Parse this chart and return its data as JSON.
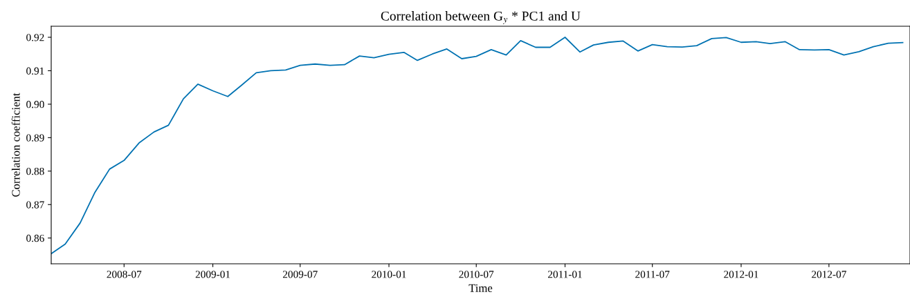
{
  "chart_data": {
    "type": "line",
    "title": "Correlation between G$_{y}$ * PC1 and U",
    "xlabel": "Time",
    "ylabel": "Correlation coefficient",
    "x": [
      "2008-02",
      "2008-03",
      "2008-04",
      "2008-05",
      "2008-06",
      "2008-07",
      "2008-08",
      "2008-09",
      "2008-10",
      "2008-11",
      "2008-12",
      "2009-01",
      "2009-02",
      "2009-03",
      "2009-04",
      "2009-05",
      "2009-06",
      "2009-07",
      "2009-08",
      "2009-09",
      "2009-10",
      "2009-11",
      "2009-12",
      "2010-01",
      "2010-02",
      "2010-03",
      "2010-04",
      "2010-05",
      "2010-06",
      "2010-07",
      "2010-08",
      "2010-09",
      "2010-10",
      "2010-11",
      "2010-12",
      "2011-01",
      "2011-02",
      "2011-03",
      "2011-04",
      "2011-05",
      "2011-06",
      "2011-07",
      "2011-08",
      "2011-09",
      "2011-10",
      "2011-11",
      "2011-12",
      "2012-01",
      "2012-02",
      "2012-03",
      "2012-04",
      "2012-05",
      "2012-06",
      "2012-07",
      "2012-08",
      "2012-09",
      "2012-10",
      "2012-11",
      "2012-12"
    ],
    "series": [
      {
        "color": "#0072b2",
        "values": [
          0.8553,
          0.8582,
          0.8645,
          0.8735,
          0.8806,
          0.8832,
          0.8884,
          0.8917,
          0.8937,
          0.9016,
          0.906,
          0.904,
          0.9023,
          0.9056,
          0.9094,
          0.91,
          0.9102,
          0.9116,
          0.912,
          0.9116,
          0.9118,
          0.9144,
          0.9139,
          0.9149,
          0.9155,
          0.9131,
          0.915,
          0.9165,
          0.9136,
          0.9143,
          0.9163,
          0.9147,
          0.919,
          0.917,
          0.917,
          0.92,
          0.9156,
          0.9177,
          0.9185,
          0.9189,
          0.9159,
          0.9178,
          0.9172,
          0.9171,
          0.9175,
          0.9196,
          0.9199,
          0.9185,
          0.9187,
          0.9181,
          0.9187,
          0.9163,
          0.9162,
          0.9163,
          0.9147,
          0.9157,
          0.9172,
          0.9182,
          0.9184
        ]
      }
    ],
    "xlim": [
      "2008-02-01",
      "2012-12-16"
    ],
    "xticks": [
      {
        "value": "2008-07-01",
        "label": "2008-07"
      },
      {
        "value": "2009-01-01",
        "label": "2009-01"
      },
      {
        "value": "2009-07-01",
        "label": "2009-07"
      },
      {
        "value": "2010-01-01",
        "label": "2010-01"
      },
      {
        "value": "2010-07-01",
        "label": "2010-07"
      },
      {
        "value": "2011-01-01",
        "label": "2011-01"
      },
      {
        "value": "2011-07-01",
        "label": "2011-07"
      },
      {
        "value": "2012-01-01",
        "label": "2012-01"
      },
      {
        "value": "2012-07-01",
        "label": "2012-07"
      }
    ],
    "ylim": [
      0.8523,
      0.9233
    ],
    "yticks": [
      {
        "value": 0.86,
        "label": "0.86"
      },
      {
        "value": 0.87,
        "label": "0.87"
      },
      {
        "value": 0.88,
        "label": "0.88"
      },
      {
        "value": 0.89,
        "label": "0.89"
      },
      {
        "value": 0.9,
        "label": "0.90"
      },
      {
        "value": 0.91,
        "label": "0.91"
      },
      {
        "value": 0.92,
        "label": "0.92"
      }
    ],
    "grid": false
  }
}
